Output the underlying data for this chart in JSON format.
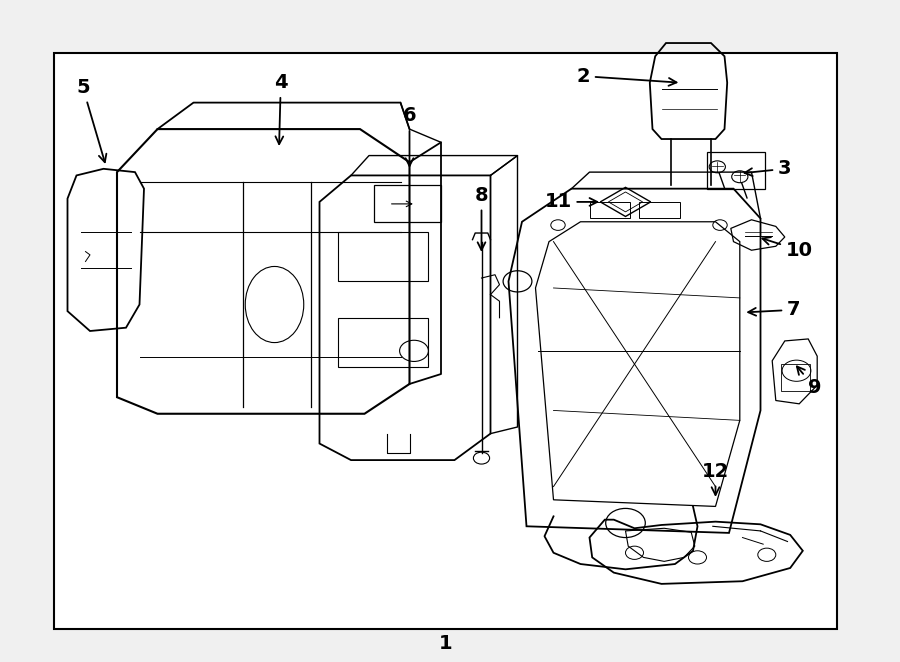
{
  "bg_color": "#f0f0f0",
  "diagram_bg": "#ffffff",
  "line_color": "#000000",
  "border_color": "#000000",
  "label_fontsize": 14,
  "diagram_border": [
    0.06,
    0.05,
    0.93,
    0.92
  ]
}
